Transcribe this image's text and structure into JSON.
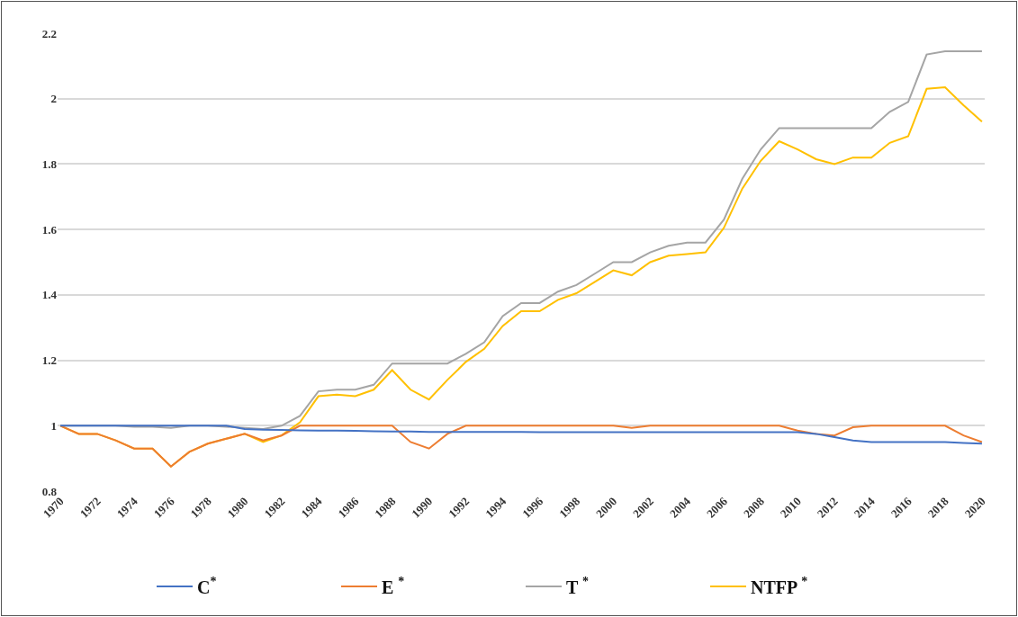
{
  "chart_data": {
    "type": "line",
    "categories": [
      "1970",
      null,
      "1972",
      null,
      "1974",
      null,
      "1976",
      null,
      "1978",
      null,
      "1980",
      null,
      "1982",
      null,
      "1984",
      null,
      "1986",
      null,
      "1988",
      null,
      "1990",
      null,
      "1992",
      null,
      "1994",
      null,
      "1996",
      null,
      "1998",
      null,
      "2000",
      null,
      "2002",
      null,
      "2004",
      null,
      "2006",
      null,
      "2008",
      null,
      "2010",
      null,
      "2012",
      null,
      "2014",
      null,
      "2016",
      null,
      "2018",
      null,
      "2020"
    ],
    "series": [
      {
        "name": "C$^{*}$",
        "color": "#4472c4",
        "values": [
          1.0,
          1.0,
          1.0,
          1.0,
          1.0,
          1.0,
          1.0,
          1.0,
          1.0,
          1.0,
          0.99,
          0.988,
          0.987,
          0.986,
          0.985,
          0.985,
          0.984,
          0.983,
          0.982,
          0.982,
          0.981,
          0.981,
          0.981,
          0.981,
          0.981,
          0.981,
          0.98,
          0.98,
          0.98,
          0.98,
          0.98,
          0.98,
          0.98,
          0.98,
          0.98,
          0.98,
          0.98,
          0.98,
          0.98,
          0.98,
          0.98,
          0.975,
          0.965,
          0.955,
          0.95,
          0.95,
          0.95,
          0.95,
          0.95,
          0.947,
          0.945
        ]
      },
      {
        "name": "E $^{*}$",
        "color": "#ed7d31",
        "values": [
          1.0,
          0.975,
          0.975,
          0.955,
          0.93,
          0.93,
          0.875,
          0.92,
          0.945,
          0.96,
          0.975,
          0.955,
          0.97,
          1.0,
          1.0,
          1.0,
          1.0,
          1.0,
          1.0,
          0.95,
          0.93,
          0.975,
          1.0,
          1.0,
          1.0,
          1.0,
          1.0,
          1.0,
          1.0,
          1.0,
          1.0,
          0.993,
          1.0,
          1.0,
          1.0,
          1.0,
          1.0,
          1.0,
          1.0,
          1.0,
          0.985,
          0.975,
          0.97,
          0.995,
          1.0,
          1.0,
          1.0,
          1.0,
          1.0,
          0.97,
          0.95
        ]
      },
      {
        "name": "T $^{*}$",
        "color": "#a5a5a5",
        "values": [
          1.0,
          1.0,
          1.0,
          1.0,
          0.997,
          0.997,
          0.993,
          1.0,
          1.0,
          0.997,
          0.993,
          0.99,
          1.0,
          1.03,
          1.105,
          1.11,
          1.11,
          1.125,
          1.19,
          1.19,
          1.19,
          1.19,
          1.22,
          1.255,
          1.335,
          1.375,
          1.375,
          1.41,
          1.43,
          1.465,
          1.5,
          1.5,
          1.53,
          1.55,
          1.56,
          1.56,
          1.63,
          1.755,
          1.845,
          1.91,
          1.91,
          1.91,
          1.91,
          1.91,
          1.91,
          1.96,
          1.99,
          2.135,
          2.145,
          2.145,
          2.145
        ]
      },
      {
        "name": "NTFP $^{*}$",
        "color": "#ffc000",
        "values": [
          1.0,
          0.975,
          0.975,
          0.955,
          0.93,
          0.93,
          0.875,
          0.92,
          0.945,
          0.96,
          0.975,
          0.95,
          0.97,
          1.01,
          1.09,
          1.095,
          1.09,
          1.11,
          1.17,
          1.11,
          1.08,
          1.14,
          1.195,
          1.235,
          1.305,
          1.35,
          1.35,
          1.385,
          1.405,
          1.44,
          1.475,
          1.46,
          1.5,
          1.52,
          1.525,
          1.53,
          1.605,
          1.725,
          1.81,
          1.87,
          1.845,
          1.815,
          1.8,
          1.82,
          1.82,
          1.865,
          1.885,
          2.03,
          2.035,
          1.98,
          1.93
        ]
      }
    ],
    "ylim": [
      0.8,
      2.2
    ],
    "yticks": [
      0.8,
      1,
      1.2,
      1.4,
      1.6,
      1.8,
      2,
      2.2
    ],
    "grid": "y",
    "legend": "bottom",
    "marker": "none",
    "line_style": "solid"
  }
}
